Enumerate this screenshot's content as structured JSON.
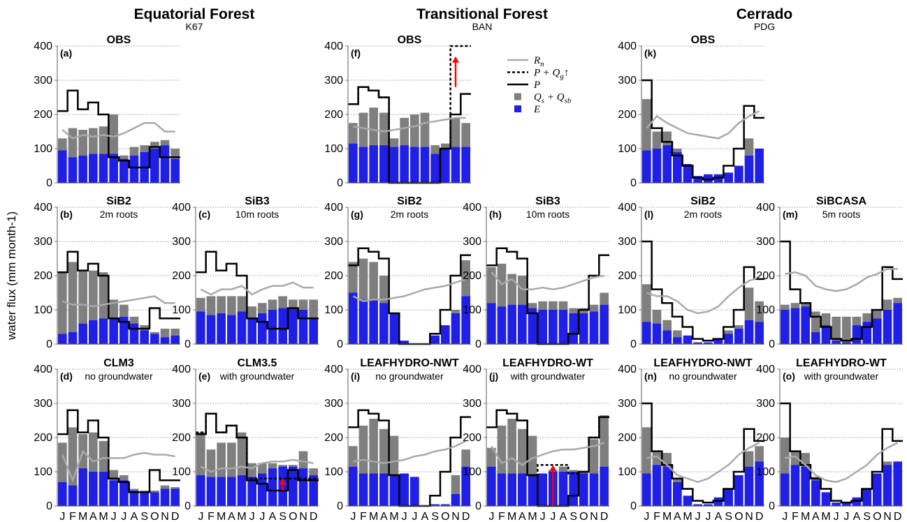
{
  "chart_data": {
    "type": "bar",
    "ylabel": "water flux (mm month-1)",
    "ylim": [
      0,
      400
    ],
    "yticks": [
      "0",
      "100",
      "200",
      "300",
      "400"
    ],
    "months": [
      "J",
      "F",
      "M",
      "A",
      "M",
      "J",
      "J",
      "A",
      "S",
      "O",
      "N",
      "D"
    ],
    "month_axis_label": "JFMAMJJASOND",
    "colors": {
      "E": "#1f1fe6",
      "Q": "#7f7f7f",
      "P": "#000000",
      "Rn": "#a9a9a9",
      "arrow": "#ff0000"
    },
    "regions": [
      {
        "name": "Equatorial Forest",
        "site": "K67"
      },
      {
        "name": "Transitional Forest",
        "site": "BAN"
      },
      {
        "name": "Cerrado",
        "site": "PDG"
      }
    ],
    "legend": [
      {
        "key": "Rn",
        "label": "R",
        "sub": "n",
        "sup": "",
        "kind": "line-gray"
      },
      {
        "key": "PQg",
        "label": "P + Q",
        "sub": "g",
        "sup": "↑",
        "kind": "line-dashed"
      },
      {
        "key": "P",
        "label": "P",
        "sub": "",
        "sup": "",
        "kind": "line-black"
      },
      {
        "key": "Q",
        "label": "Q",
        "sub": "s",
        "sup": " + Q",
        "sub2": "sb",
        "kind": "square-gray"
      },
      {
        "key": "E",
        "label": "E",
        "sub": "",
        "sup": "",
        "kind": "square-blue"
      }
    ],
    "panels": [
      {
        "letter": "(a)",
        "model": "OBS",
        "sub": "",
        "col": 0,
        "row": 0,
        "E": [
          95,
          75,
          80,
          85,
          85,
          85,
          70,
          80,
          90,
          100,
          110,
          70
        ],
        "Q": [
          35,
          85,
          75,
          75,
          80,
          115,
          10,
          25,
          20,
          20,
          15,
          30
        ],
        "P": [
          210,
          270,
          215,
          235,
          200,
          75,
          65,
          45,
          45,
          105,
          75,
          75
        ],
        "Rn": [
          155,
          130,
          140,
          135,
          140,
          135,
          145,
          160,
          175,
          175,
          150,
          150
        ]
      },
      {
        "letter": "(b)",
        "model": "SiB2",
        "sub": "2m roots",
        "col": 0,
        "row": 1,
        "E": [
          30,
          35,
          60,
          70,
          75,
          75,
          80,
          60,
          40,
          30,
          20,
          25
        ],
        "Q": [
          180,
          205,
          155,
          145,
          135,
          55,
          35,
          20,
          15,
          5,
          25,
          20
        ],
        "P": [
          210,
          270,
          215,
          235,
          200,
          75,
          65,
          45,
          45,
          105,
          75,
          75
        ],
        "Rn": [
          125,
          115,
          115,
          110,
          115,
          120,
          125,
          130,
          135,
          140,
          120,
          120
        ]
      },
      {
        "letter": "(c)",
        "model": "SiB3",
        "sub": "10m roots",
        "col": 1,
        "row": 1,
        "E": [
          95,
          85,
          90,
          85,
          95,
          75,
          90,
          100,
          105,
          105,
          100,
          75
        ],
        "Q": [
          40,
          55,
          50,
          55,
          45,
          35,
          30,
          30,
          35,
          25,
          30,
          55
        ],
        "P": [
          210,
          270,
          215,
          235,
          200,
          75,
          65,
          45,
          45,
          105,
          75,
          75
        ],
        "Rn": [
          160,
          145,
          160,
          160,
          170,
          145,
          160,
          170,
          170,
          180,
          165,
          165
        ]
      },
      {
        "letter": "(d)",
        "model": "CLM3",
        "sub": "no groundwater",
        "col": 0,
        "row": 2,
        "E": [
          70,
          60,
          110,
          100,
          100,
          75,
          75,
          45,
          40,
          40,
          50,
          50
        ],
        "Q": [
          115,
          170,
          100,
          115,
          90,
          30,
          15,
          5,
          5,
          5,
          10,
          5
        ],
        "P": [
          210,
          280,
          215,
          250,
          200,
          80,
          70,
          40,
          40,
          105,
          75,
          75
        ],
        "Rn": [
          150,
          75,
          160,
          130,
          140,
          140,
          140,
          150,
          155,
          150,
          150,
          145
        ]
      },
      {
        "letter": "(e)",
        "model": "CLM3.5",
        "sub": "with groundwater",
        "col": 1,
        "row": 2,
        "E": [
          90,
          85,
          85,
          85,
          90,
          85,
          95,
          110,
          115,
          115,
          110,
          90
        ],
        "Q": [
          125,
          80,
          100,
          100,
          125,
          40,
          30,
          15,
          5,
          5,
          50,
          20
        ],
        "P": [
          210,
          270,
          215,
          235,
          200,
          75,
          65,
          45,
          45,
          105,
          75,
          75
        ],
        "Rn": [
          115,
          100,
          110,
          110,
          115,
          110,
          125,
          130,
          130,
          135,
          130,
          125
        ],
        "dashed": [
          215,
          270,
          215,
          235,
          200,
          80,
          80,
          80,
          80,
          80,
          80,
          80
        ],
        "arrow": {
          "month": 8,
          "from": 45,
          "to": 80
        }
      },
      {
        "letter": "(f)",
        "model": "OBS",
        "sub": "",
        "col": 2,
        "row": 0,
        "E": [
          115,
          105,
          110,
          110,
          105,
          110,
          105,
          105,
          85,
          100,
          105,
          105
        ],
        "Q": [
          60,
          100,
          110,
          95,
          25,
          80,
          95,
          100,
          25,
          15,
          85,
          70
        ],
        "P": [
          230,
          280,
          270,
          250,
          0,
          0,
          0,
          0,
          0,
          100,
          200,
          260
        ],
        "Rn": [
          165,
          160,
          155,
          150,
          155,
          160,
          165,
          175,
          180,
          185,
          190,
          190
        ],
        "dashed": [
          230,
          280,
          270,
          250,
          0,
          0,
          0,
          0,
          0,
          100,
          400,
          400
        ],
        "arrow": {
          "month": 10,
          "from": 280,
          "to": 370
        }
      },
      {
        "letter": "(g)",
        "model": "SiB2",
        "sub": "2m roots",
        "col": 2,
        "row": 1,
        "E": [
          150,
          130,
          130,
          120,
          90,
          10,
          0,
          0,
          25,
          55,
          90,
          140
        ],
        "Q": [
          90,
          120,
          110,
          80,
          0,
          0,
          0,
          0,
          0,
          0,
          10,
          105
        ],
        "P": [
          230,
          280,
          270,
          250,
          90,
          0,
          0,
          0,
          30,
          100,
          200,
          260
        ],
        "Rn": [
          140,
          125,
          130,
          130,
          135,
          140,
          150,
          160,
          165,
          170,
          180,
          190
        ]
      },
      {
        "letter": "(h)",
        "model": "SiB3",
        "sub": "10m roots",
        "col": 3,
        "row": 1,
        "E": [
          120,
          110,
          115,
          115,
          105,
          100,
          100,
          100,
          90,
          90,
          95,
          115
        ],
        "Q": [
          105,
          125,
          90,
          85,
          15,
          25,
          25,
          25,
          15,
          15,
          20,
          35
        ],
        "P": [
          230,
          280,
          270,
          250,
          90,
          0,
          0,
          0,
          30,
          100,
          200,
          260
        ],
        "Rn": [
          210,
          175,
          190,
          160,
          160,
          165,
          160,
          165,
          175,
          185,
          195,
          200
        ]
      },
      {
        "letter": "(i)",
        "model": "LEAFHYDRO-NWT",
        "sub": "no groundwater",
        "col": 2,
        "row": 2,
        "E": [
          115,
          95,
          95,
          95,
          90,
          95,
          85,
          0,
          5,
          5,
          35,
          115
        ],
        "Q": [
          60,
          140,
          160,
          130,
          115,
          0,
          0,
          0,
          0,
          0,
          55,
          50
        ],
        "P": [
          230,
          280,
          270,
          250,
          90,
          0,
          0,
          0,
          30,
          100,
          200,
          260
        ],
        "Rn": [
          130,
          135,
          130,
          125,
          130,
          135,
          145,
          150,
          160,
          165,
          175,
          190
        ]
      },
      {
        "letter": "(j)",
        "model": "LEAFHYDRO-WT",
        "sub": "with groundwater",
        "col": 3,
        "row": 2,
        "E": [
          115,
          95,
          95,
          95,
          90,
          95,
          100,
          100,
          100,
          95,
          95,
          115
        ],
        "Q": [
          55,
          140,
          160,
          130,
          115,
          0,
          5,
          15,
          5,
          5,
          100,
          150
        ],
        "P": [
          230,
          280,
          270,
          250,
          90,
          0,
          0,
          0,
          30,
          100,
          200,
          260
        ],
        "Rn": [
          175,
          125,
          140,
          120,
          140,
          150,
          160,
          165,
          165,
          170,
          175,
          185
        ],
        "dashed": [
          230,
          280,
          270,
          250,
          90,
          120,
          120,
          120,
          95,
          100,
          200,
          260
        ],
        "arrow": {
          "month": 6,
          "from": 0,
          "to": 120
        }
      },
      {
        "letter": "(k)",
        "model": "OBS",
        "sub": "",
        "col": 4,
        "row": 0,
        "E": [
          95,
          100,
          110,
          90,
          55,
          20,
          25,
          25,
          30,
          50,
          80,
          100
        ],
        "Q": [
          150,
          50,
          40,
          10,
          0,
          0,
          0,
          0,
          0,
          0,
          50,
          0
        ],
        "P": [
          300,
          160,
          120,
          80,
          50,
          15,
          10,
          15,
          50,
          100,
          225,
          190
        ],
        "Rn": [
          160,
          195,
          175,
          160,
          145,
          140,
          135,
          130,
          145,
          175,
          195,
          210
        ]
      },
      {
        "letter": "(l)",
        "model": "SiB2",
        "sub": "2m roots",
        "col": 4,
        "row": 1,
        "E": [
          65,
          60,
          40,
          20,
          25,
          5,
          5,
          15,
          30,
          45,
          70,
          65
        ],
        "Q": [
          110,
          40,
          30,
          20,
          0,
          0,
          0,
          0,
          10,
          10,
          95,
          60
        ],
        "P": [
          300,
          160,
          120,
          80,
          50,
          15,
          10,
          15,
          50,
          100,
          225,
          190
        ],
        "Rn": [
          150,
          140,
          140,
          125,
          100,
          90,
          95,
          110,
          140,
          165,
          185,
          195
        ]
      },
      {
        "letter": "(m)",
        "model": "SiBCASA",
        "sub": "5m roots",
        "col": 5,
        "row": 1,
        "E": [
          100,
          105,
          110,
          35,
          55,
          10,
          5,
          55,
          65,
          75,
          100,
          120
        ],
        "Q": [
          15,
          15,
          10,
          60,
          35,
          70,
          75,
          25,
          25,
          25,
          30,
          15
        ],
        "P": [
          300,
          160,
          120,
          80,
          50,
          15,
          10,
          15,
          50,
          100,
          225,
          190
        ],
        "Rn": [
          205,
          210,
          200,
          170,
          160,
          155,
          160,
          175,
          195,
          205,
          220,
          220
        ]
      },
      {
        "letter": "(n)",
        "model": "LEAFHYDRO-NWT",
        "sub": "no groundwater",
        "col": 4,
        "row": 2,
        "E": [
          95,
          120,
          115,
          70,
          30,
          5,
          5,
          25,
          50,
          90,
          115,
          130
        ],
        "Q": [
          135,
          40,
          40,
          10,
          0,
          0,
          0,
          0,
          0,
          0,
          45,
          45
        ],
        "P": [
          300,
          160,
          120,
          80,
          50,
          15,
          10,
          15,
          50,
          100,
          225,
          190
        ],
        "Rn": [
          140,
          145,
          120,
          90,
          80,
          70,
          80,
          100,
          120,
          150,
          170,
          185
        ]
      },
      {
        "letter": "(o)",
        "model": "LEAFHYDRO-WT",
        "sub": "with groundwater",
        "col": 5,
        "row": 2,
        "E": [
          95,
          120,
          115,
          75,
          40,
          10,
          10,
          25,
          50,
          95,
          120,
          130
        ],
        "Q": [
          105,
          40,
          40,
          10,
          0,
          0,
          0,
          0,
          0,
          0,
          10,
          0
        ],
        "P": [
          300,
          160,
          120,
          80,
          50,
          15,
          10,
          15,
          50,
          100,
          225,
          190
        ],
        "Rn": [
          140,
          145,
          120,
          90,
          75,
          70,
          80,
          100,
          120,
          150,
          170,
          185
        ]
      }
    ]
  }
}
